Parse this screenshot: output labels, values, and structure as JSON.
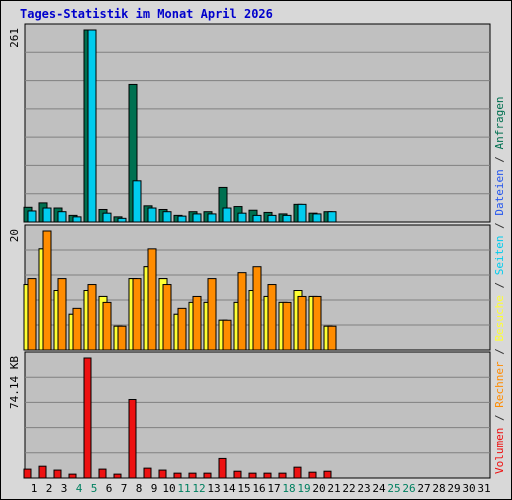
{
  "title": "Tages-Statistik im Monat April 2026",
  "colors": {
    "title": "#0000cc",
    "background": "#d8d8d8",
    "plot_area": "#c0c0c0",
    "anfragen": "#007050",
    "dateien": "#00ccee",
    "seiten": "#00ccee",
    "besuche": "#ffff33",
    "rechner": "#ff8c00",
    "volumen": "#ee1111",
    "weekend_tick": "#008060",
    "weekday_tick": "#000000"
  },
  "legend": {
    "anfragen": "Anfragen",
    "dateien": "Dateien",
    "seiten": "Seiten",
    "besuche": "Besuche",
    "rechner": "Rechner",
    "volumen": "Volumen",
    "separator": "/"
  },
  "chart_data": [
    {
      "type": "bar",
      "panel": "top",
      "ylabel": "261",
      "ylim": [
        0,
        261
      ],
      "categories": [
        "1",
        "2",
        "3",
        "4",
        "5",
        "6",
        "7",
        "8",
        "9",
        "10",
        "11",
        "12",
        "13",
        "14",
        "15",
        "16",
        "17",
        "18",
        "19",
        "20",
        "21",
        "22",
        "23",
        "24",
        "25",
        "26",
        "27",
        "28",
        "29",
        "30",
        "31"
      ],
      "weekend_days": [
        "4",
        "5",
        "11",
        "12",
        "18",
        "19",
        "25",
        "26"
      ],
      "series": [
        {
          "name": "Anfragen",
          "values": [
            20,
            26,
            19,
            9,
            261,
            17,
            7,
            187,
            22,
            17,
            9,
            14,
            14,
            47,
            21,
            16,
            13,
            11,
            24,
            12,
            14,
            0,
            0,
            0,
            0,
            0,
            0,
            0,
            0,
            0,
            0
          ]
        },
        {
          "name": "Dateien",
          "values": [
            15,
            19,
            14,
            7,
            261,
            12,
            5,
            56,
            19,
            14,
            8,
            11,
            11,
            19,
            12,
            9,
            9,
            9,
            24,
            11,
            14,
            0,
            0,
            0,
            0,
            0,
            0,
            0,
            0,
            0,
            0
          ]
        }
      ]
    },
    {
      "type": "bar",
      "panel": "middle",
      "ylabel": "20",
      "ylim": [
        0,
        20
      ],
      "categories": [
        "1",
        "2",
        "3",
        "4",
        "5",
        "6",
        "7",
        "8",
        "9",
        "10",
        "11",
        "12",
        "13",
        "14",
        "15",
        "16",
        "17",
        "18",
        "19",
        "20",
        "21",
        "22",
        "23",
        "24",
        "25",
        "26",
        "27",
        "28",
        "29",
        "30",
        "31"
      ],
      "series": [
        {
          "name": "Seiten",
          "values": [
            11,
            17,
            10,
            6,
            10,
            9,
            4,
            12,
            14,
            12,
            6,
            8,
            8,
            5,
            8,
            10,
            9,
            8,
            10,
            9,
            4,
            0,
            0,
            0,
            0,
            0,
            0,
            0,
            0,
            0,
            0
          ]
        },
        {
          "name": "Besuche",
          "values": [
            11,
            17,
            10,
            6,
            10,
            9,
            4,
            12,
            14,
            12,
            6,
            8,
            8,
            5,
            8,
            10,
            9,
            8,
            10,
            9,
            4,
            0,
            0,
            0,
            0,
            0,
            0,
            0,
            0,
            0,
            0
          ]
        },
        {
          "name": "Rechner",
          "values": [
            12,
            20,
            12,
            7,
            11,
            8,
            4,
            12,
            17,
            11,
            7,
            9,
            12,
            5,
            13,
            14,
            11,
            8,
            9,
            9,
            4,
            0,
            0,
            0,
            0,
            0,
            0,
            0,
            0,
            0,
            0
          ]
        }
      ]
    },
    {
      "type": "bar",
      "panel": "bottom",
      "ylabel": "74.14 KB",
      "ylim": [
        0,
        74.14
      ],
      "categories": [
        "1",
        "2",
        "3",
        "4",
        "5",
        "6",
        "7",
        "8",
        "9",
        "10",
        "11",
        "12",
        "13",
        "14",
        "15",
        "16",
        "17",
        "18",
        "19",
        "20",
        "21",
        "22",
        "23",
        "24",
        "25",
        "26",
        "27",
        "28",
        "29",
        "30",
        "31"
      ],
      "series": [
        {
          "name": "Volumen",
          "values": [
            5.5,
            7.3,
            4.9,
            2.4,
            74.14,
            5.5,
            2.4,
            48.5,
            6.1,
            4.9,
            3.0,
            3.0,
            3.0,
            12.1,
            4.2,
            3.0,
            3.0,
            3.0,
            6.7,
            3.6,
            4.2,
            0,
            0,
            0,
            0,
            0,
            0,
            0,
            0,
            0,
            0
          ]
        }
      ]
    }
  ]
}
